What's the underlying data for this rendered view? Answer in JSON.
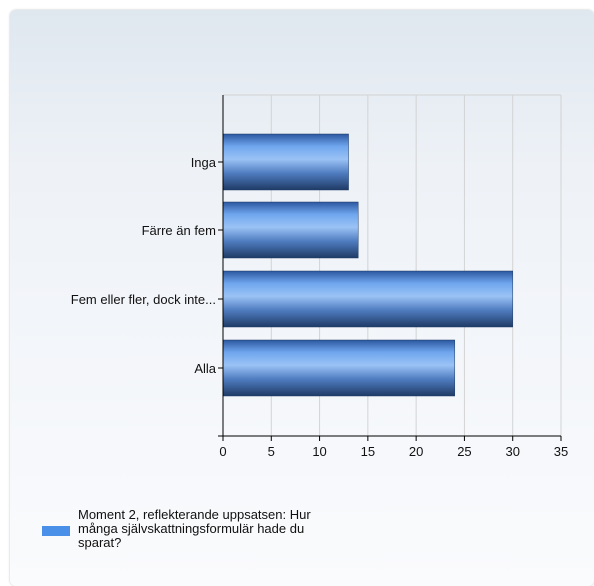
{
  "chart_data": {
    "type": "bar",
    "orientation": "horizontal",
    "categories": [
      "Inga",
      "Färre än fem",
      "Fem eller fler, dock inte...",
      "Alla"
    ],
    "series": [
      {
        "name": "Moment 2, reflekterande uppsatsen: Hur många självskattningsformulär hade du sparat?",
        "values": [
          13,
          14,
          30,
          24
        ]
      }
    ],
    "xlim": [
      0,
      35
    ],
    "xticks": [
      "0",
      "5",
      "10",
      "15",
      "20",
      "25",
      "30",
      "35"
    ],
    "grid": true,
    "legend_position": "bottom-left",
    "colors": {
      "bar": "#4a90e8",
      "bar_dark": "#1f3b66",
      "grid": "#d3d3d3"
    }
  }
}
